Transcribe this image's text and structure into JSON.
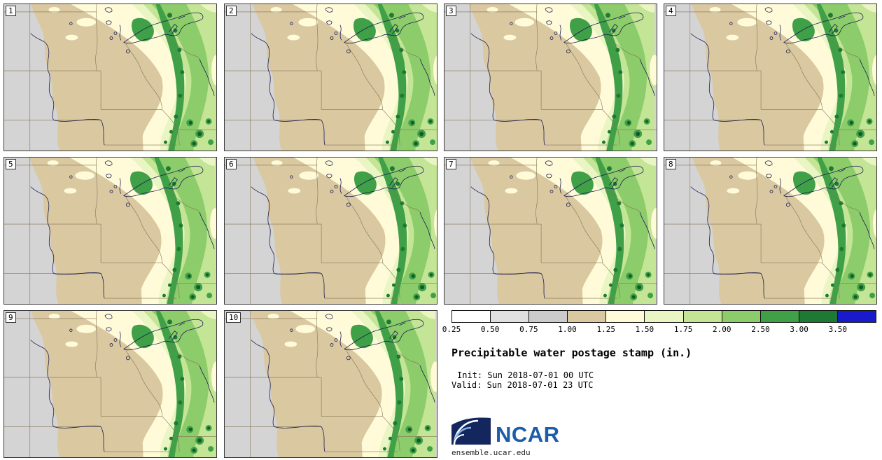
{
  "panels": [
    {
      "label": "1"
    },
    {
      "label": "2"
    },
    {
      "label": "3"
    },
    {
      "label": "4"
    },
    {
      "label": "5"
    },
    {
      "label": "6"
    },
    {
      "label": "7"
    },
    {
      "label": "8"
    },
    {
      "label": "9"
    },
    {
      "label": "10"
    }
  ],
  "colorbar": {
    "tick_labels": [
      "0.25",
      "0.50",
      "0.75",
      "1.00",
      "1.25",
      "1.50",
      "1.75",
      "2.00",
      "2.50",
      "3.00",
      "3.50"
    ],
    "colors": [
      "#ffffff",
      "#e0e0e0",
      "#cbcbcb",
      "#d9c8a0",
      "#fffbd8",
      "#eaf5c4",
      "#c3e595",
      "#8ccc6a",
      "#3fa047",
      "#1e7a33",
      "#1a1acd"
    ]
  },
  "legend": {
    "title": "Precipitable water postage stamp (in.)",
    "init_line": "Init: Sun 2018-07-01 00 UTC",
    "valid_line": "Valid: Sun 2018-07-01 23 UTC"
  },
  "branding": {
    "logo_text": "NCAR",
    "site_url": "ensemble.ucar.edu",
    "logo_blue": "#1c5da8",
    "swoosh_navy": "#14265e"
  },
  "map": {
    "base_gray": "#d4d4d4",
    "border_color": "#857457",
    "water_color": "#1b1b4f",
    "speckle_green": "#145a26"
  }
}
